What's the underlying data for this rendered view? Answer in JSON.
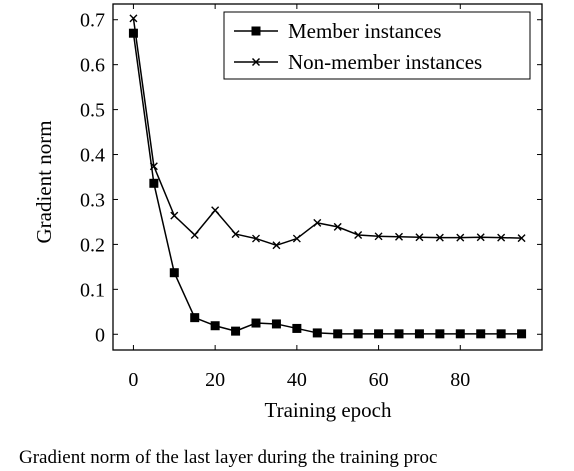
{
  "chart_data": {
    "type": "line",
    "title": "",
    "xlabel": "Training epoch",
    "ylabel": "Gradient norm",
    "xlim": [
      -5,
      100
    ],
    "ylim": [
      -0.035,
      0.735
    ],
    "xticks": [
      0,
      20,
      40,
      60,
      80
    ],
    "yticks": [
      0,
      0.1,
      0.2,
      0.3,
      0.4,
      0.5,
      0.6,
      0.7
    ],
    "x_tick_labels": [
      "0",
      "20",
      "40",
      "60",
      "80"
    ],
    "y_tick_labels": [
      "0",
      "0.1",
      "0.2",
      "0.3",
      "0.4",
      "0.5",
      "0.6",
      "0.7"
    ],
    "grid": false,
    "legend_position": "top-right",
    "series": [
      {
        "name": "Member instances",
        "marker": "square",
        "color": "#000000",
        "x": [
          0,
          5,
          10,
          15,
          20,
          25,
          30,
          35,
          40,
          45,
          50,
          55,
          60,
          65,
          70,
          75,
          80,
          85,
          90,
          95
        ],
        "y": [
          0.67,
          0.336,
          0.137,
          0.037,
          0.019,
          0.007,
          0.025,
          0.023,
          0.013,
          0.003,
          0.001,
          0.001,
          0.001,
          0.001,
          0.001,
          0.001,
          0.001,
          0.001,
          0.001,
          0.001
        ]
      },
      {
        "name": "Non-member instances",
        "marker": "x",
        "color": "#000000",
        "x": [
          0,
          5,
          10,
          15,
          20,
          25,
          30,
          35,
          40,
          45,
          50,
          55,
          60,
          65,
          70,
          75,
          80,
          85,
          90,
          95
        ],
        "y": [
          0.703,
          0.374,
          0.264,
          0.221,
          0.276,
          0.223,
          0.213,
          0.198,
          0.213,
          0.248,
          0.239,
          0.221,
          0.218,
          0.217,
          0.216,
          0.215,
          0.215,
          0.216,
          0.215,
          0.214
        ]
      }
    ]
  },
  "caption": {
    "text": "Gradient norm of the last layer during the training proc"
  }
}
